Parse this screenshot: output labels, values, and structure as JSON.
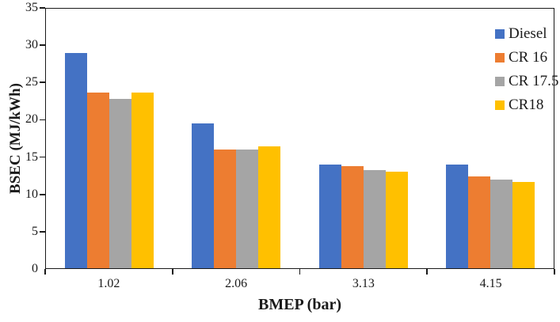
{
  "chart_data": {
    "type": "bar",
    "title": "",
    "xlabel": "BMEP (bar)",
    "ylabel": "BSEC (MJ/kWh)",
    "categories": [
      "1.02",
      "2.06",
      "3.13",
      "4.15"
    ],
    "series": [
      {
        "name": "Diesel",
        "color": "#4472C4",
        "values": [
          29.0,
          19.5,
          14.0,
          14.0
        ]
      },
      {
        "name": "CR 16",
        "color": "#ED7D31",
        "values": [
          23.7,
          16.0,
          13.8,
          12.4
        ]
      },
      {
        "name": "CR 17.5",
        "color": "#A5A5A5",
        "values": [
          22.8,
          16.0,
          13.2,
          12.0
        ]
      },
      {
        "name": "CR18",
        "color": "#FFC000",
        "values": [
          23.7,
          16.4,
          13.0,
          11.6
        ]
      }
    ],
    "ylim": [
      0,
      35
    ],
    "yticks": [
      0,
      5,
      10,
      15,
      20,
      25,
      30,
      35
    ],
    "grid": false,
    "legend_position": "top-right-inside",
    "axis_color": "#1a1a1a"
  }
}
